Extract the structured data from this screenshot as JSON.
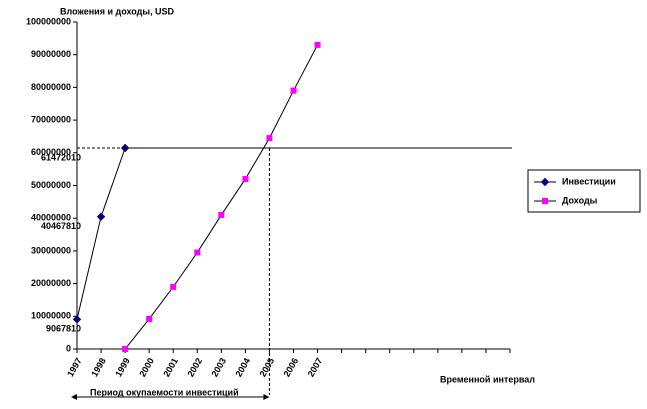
{
  "chart_data": {
    "type": "line",
    "y_axis_label": "Вложения и доходы, USD",
    "x_axis_label": "Временной интервал",
    "annotation": "Период окупаемости инвестиций",
    "categories": [
      "1997",
      "1998",
      "1999",
      "2000",
      "2001",
      "2002",
      "2003",
      "2004",
      "2005",
      "2006",
      "2007",
      null,
      null,
      null,
      null,
      null,
      null,
      null,
      null
    ],
    "series": [
      {
        "name": "Инвестиции",
        "color": "#000080",
        "marker": "diamond",
        "values": [
          9067810,
          40467810,
          61472010,
          null,
          null,
          null,
          null,
          null,
          null,
          null,
          null,
          null,
          null,
          null,
          null,
          null,
          null,
          null,
          null
        ]
      },
      {
        "name": "Доходы",
        "color": "#ff00ff",
        "marker": "square",
        "values": [
          null,
          null,
          0,
          9200000,
          19000000,
          29500000,
          41000000,
          52000000,
          64500000,
          79000000,
          93000000,
          null,
          null,
          null,
          null,
          null,
          null,
          null,
          null
        ]
      }
    ],
    "ylim": [
      0,
      100000000
    ],
    "yticks": [
      0,
      10000000,
      20000000,
      30000000,
      40000000,
      50000000,
      60000000,
      70000000,
      80000000,
      90000000,
      100000000
    ],
    "legend": "right"
  }
}
